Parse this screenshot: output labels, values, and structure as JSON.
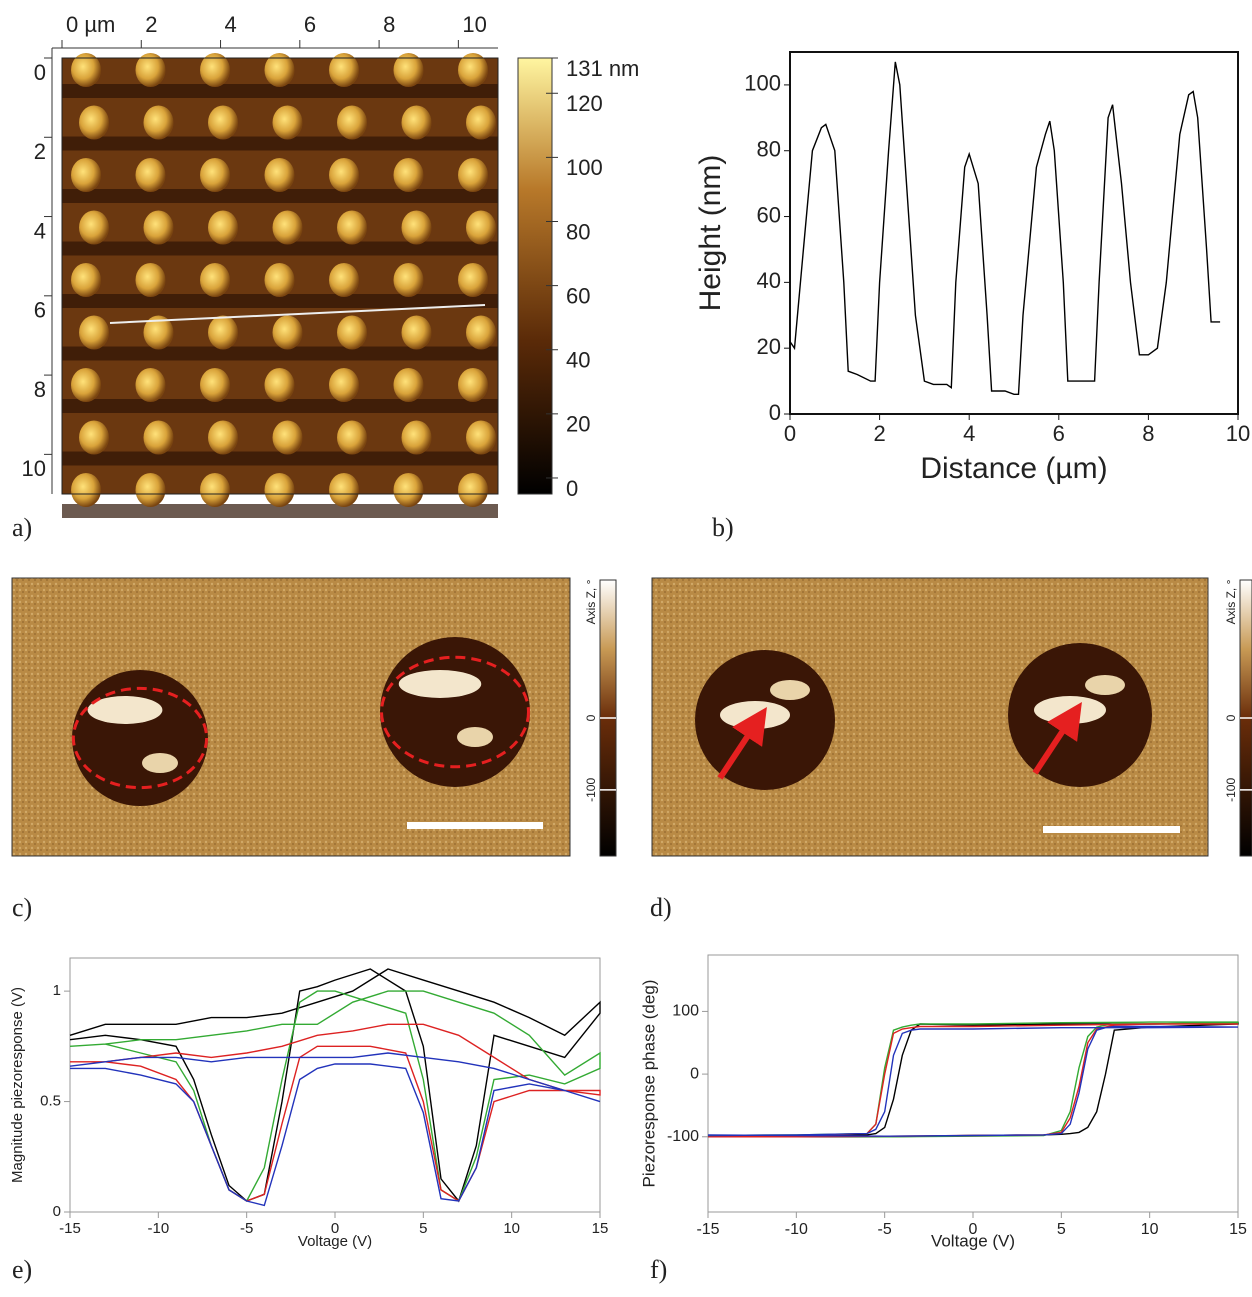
{
  "chart_data": [
    {
      "type": "image",
      "label": "a)",
      "xlim": [
        0,
        11
      ],
      "ylim": [
        0,
        11
      ],
      "xticks": [
        {
          "value": 0,
          "label": "0 µm"
        },
        2,
        4,
        6,
        8,
        10
      ],
      "yticks": [
        0,
        2,
        4,
        6,
        8,
        10
      ],
      "colorbar": {
        "lim": [
          -5,
          131
        ],
        "ticks": [
          {
            "value": 131,
            "label": "131 nm"
          },
          120,
          100,
          80,
          60,
          40,
          20,
          0
        ]
      }
    },
    {
      "type": "line",
      "label": "b)",
      "xlabel": "Distance (µm)",
      "ylabel": "Height (nm)",
      "color": "#000000",
      "xlim": [
        0,
        10
      ],
      "ylim": [
        0,
        110
      ],
      "xticks": [
        0,
        2,
        4,
        6,
        8,
        10
      ],
      "yticks": [
        0,
        20,
        40,
        60,
        80,
        100
      ],
      "x": [
        0,
        0.1,
        0.3,
        0.5,
        0.7,
        0.8,
        1.0,
        1.2,
        1.3,
        1.5,
        1.8,
        1.9,
        2.0,
        2.2,
        2.35,
        2.45,
        2.6,
        2.8,
        3.0,
        3.2,
        3.5,
        3.6,
        3.7,
        3.9,
        4.0,
        4.2,
        4.4,
        4.5,
        4.8,
        5.0,
        5.1,
        5.2,
        5.5,
        5.7,
        5.8,
        5.9,
        6.1,
        6.2,
        6.5,
        6.8,
        6.9,
        7.1,
        7.2,
        7.3,
        7.4,
        7.6,
        7.8,
        8.0,
        8.2,
        8.4,
        8.7,
        8.9,
        9.0,
        9.1,
        9.3,
        9.4,
        9.5,
        9.6
      ],
      "values": [
        22,
        20,
        50,
        80,
        87,
        88,
        80,
        40,
        13,
        12,
        10,
        10,
        40,
        80,
        107,
        100,
        70,
        30,
        10,
        9,
        9,
        8,
        40,
        75,
        79,
        70,
        30,
        7,
        7,
        6,
        6,
        30,
        75,
        85,
        89,
        80,
        40,
        10,
        10,
        10,
        40,
        90,
        94,
        82,
        70,
        40,
        18,
        18,
        20,
        40,
        85,
        97,
        98,
        90,
        50,
        28,
        28,
        28
      ]
    },
    {
      "type": "image",
      "label": "c)",
      "colorbar": {
        "title": "Axis Z, °",
        "lim": [
          -192,
          192
        ],
        "ticks": [
          0,
          -100
        ]
      }
    },
    {
      "type": "image",
      "label": "d)",
      "colorbar": {
        "title": "Axis Z, °",
        "lim": [
          -192,
          192
        ],
        "ticks": [
          0,
          -100
        ]
      }
    },
    {
      "type": "line",
      "label": "e)",
      "xlabel": "Voltage (V)",
      "ylabel": "Magnitude piezoresponse (V)",
      "xlim": [
        -15,
        15
      ],
      "ylim": [
        0,
        1.15
      ],
      "xticks": [
        -15,
        -10,
        -5,
        0,
        5,
        10,
        15
      ],
      "yticks": [
        0,
        0.5,
        1
      ],
      "x": [
        -15,
        -13,
        -11,
        -9,
        -8,
        -7,
        -6,
        -5,
        -4,
        -3,
        -2,
        -1,
        0,
        2,
        4,
        5,
        6,
        7,
        8,
        9,
        11,
        13,
        15,
        15,
        13,
        11,
        9,
        7,
        5,
        3,
        1,
        -1,
        -3,
        -5,
        -7,
        -9,
        -11,
        -13,
        -15
      ],
      "series": [
        {
          "color": "#000000",
          "values": [
            0.78,
            0.8,
            0.78,
            0.75,
            0.6,
            0.35,
            0.12,
            0.05,
            0.08,
            0.5,
            1.0,
            1.02,
            1.05,
            1.1,
            1.0,
            0.75,
            0.15,
            0.05,
            0.3,
            0.8,
            0.75,
            0.7,
            0.9,
            0.95,
            0.8,
            0.88,
            0.95,
            1.0,
            1.05,
            1.1,
            1.0,
            0.95,
            0.9,
            0.88,
            0.88,
            0.85,
            0.85,
            0.85,
            0.8
          ]
        },
        {
          "color": "#33aa33",
          "values": [
            0.75,
            0.76,
            0.72,
            0.68,
            0.55,
            0.3,
            0.1,
            0.05,
            0.2,
            0.6,
            0.95,
            1.0,
            1.0,
            0.95,
            0.9,
            0.6,
            0.1,
            0.05,
            0.25,
            0.6,
            0.62,
            0.58,
            0.65,
            0.72,
            0.62,
            0.8,
            0.9,
            0.95,
            1.0,
            1.0,
            0.95,
            0.85,
            0.85,
            0.82,
            0.8,
            0.78,
            0.78,
            0.76,
            0.75
          ]
        },
        {
          "color": "#dd2222",
          "values": [
            0.68,
            0.68,
            0.66,
            0.6,
            0.5,
            0.3,
            0.1,
            0.05,
            0.08,
            0.4,
            0.7,
            0.75,
            0.75,
            0.75,
            0.72,
            0.5,
            0.1,
            0.05,
            0.2,
            0.5,
            0.55,
            0.55,
            0.55,
            0.53,
            0.55,
            0.6,
            0.7,
            0.8,
            0.85,
            0.85,
            0.82,
            0.8,
            0.75,
            0.72,
            0.7,
            0.72,
            0.7,
            0.68,
            0.68
          ]
        },
        {
          "color": "#2233bb",
          "values": [
            0.65,
            0.65,
            0.62,
            0.58,
            0.5,
            0.3,
            0.1,
            0.05,
            0.03,
            0.3,
            0.6,
            0.65,
            0.67,
            0.67,
            0.65,
            0.45,
            0.06,
            0.05,
            0.2,
            0.55,
            0.58,
            0.55,
            0.5,
            0.5,
            0.55,
            0.6,
            0.65,
            0.68,
            0.7,
            0.72,
            0.7,
            0.7,
            0.7,
            0.7,
            0.68,
            0.7,
            0.7,
            0.68,
            0.66
          ]
        }
      ]
    },
    {
      "type": "line",
      "label": "f)",
      "xlabel": "Voltage (V)",
      "ylabel": "Piezoresponse phase (deg)",
      "xlim": [
        -15,
        15
      ],
      "ylim": [
        -220,
        190
      ],
      "xticks": [
        -15,
        -10,
        -5,
        0,
        5,
        10,
        15
      ],
      "yticks": [
        -100,
        0,
        100
      ],
      "x": [
        -15,
        -10,
        -5,
        0,
        4,
        5,
        5.5,
        6,
        6.5,
        7,
        7.5,
        8,
        10,
        15,
        15,
        10,
        5,
        0,
        -3,
        -3.5,
        -4,
        -4.5,
        -5,
        -5.5,
        -6,
        -10,
        -15
      ],
      "series": [
        {
          "color": "#000000",
          "values": [
            -100,
            -100,
            -100,
            -98,
            -97,
            -96,
            -95,
            -93,
            -85,
            -60,
            0,
            70,
            75,
            80,
            82,
            80,
            80,
            78,
            80,
            70,
            30,
            -40,
            -85,
            -95,
            -97,
            -98,
            -100
          ]
        },
        {
          "color": "#33aa33",
          "values": [
            -98,
            -99,
            -100,
            -99,
            -98,
            -90,
            -60,
            10,
            60,
            75,
            78,
            80,
            80,
            82,
            83,
            83,
            82,
            80,
            80,
            78,
            75,
            70,
            10,
            -80,
            -95,
            -97,
            -98
          ]
        },
        {
          "color": "#dd2222",
          "values": [
            -100,
            -100,
            -99,
            -98,
            -97,
            -93,
            -70,
            -20,
            50,
            72,
            75,
            78,
            80,
            80,
            80,
            80,
            78,
            76,
            76,
            74,
            72,
            65,
            0,
            -80,
            -95,
            -98,
            -100
          ]
        },
        {
          "color": "#2233bb",
          "values": [
            -97,
            -98,
            -99,
            -98,
            -97,
            -95,
            -80,
            -30,
            40,
            70,
            74,
            76,
            76,
            75,
            75,
            74,
            74,
            72,
            72,
            70,
            65,
            30,
            -60,
            -88,
            -95,
            -97,
            -98
          ]
        }
      ]
    }
  ]
}
